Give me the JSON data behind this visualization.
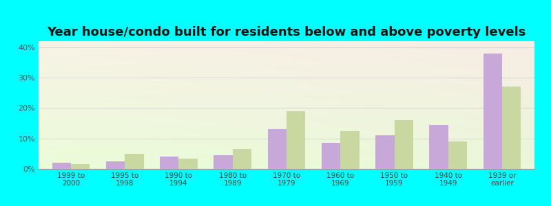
{
  "title": "Year house/condo built for residents below and above poverty levels",
  "categories": [
    "1999 to\n2000",
    "1995 to\n1998",
    "1990 to\n1994",
    "1980 to\n1989",
    "1970 to\n1979",
    "1960 to\n1969",
    "1950 to\n1959",
    "1940 to\n1949",
    "1939 or\nearlier"
  ],
  "below_poverty": [
    2.0,
    2.5,
    4.0,
    4.5,
    13.0,
    8.5,
    11.0,
    14.5,
    38.0
  ],
  "above_poverty": [
    1.5,
    5.0,
    3.5,
    6.5,
    19.0,
    12.5,
    16.0,
    9.0,
    27.0
  ],
  "below_color": "#c8a8d8",
  "above_color": "#c8d8a0",
  "ylim": [
    0,
    42
  ],
  "yticks": [
    0,
    10,
    20,
    30,
    40
  ],
  "ytick_labels": [
    "0%",
    "10%",
    "20%",
    "30%",
    "40%"
  ],
  "background_color": "#00ffff",
  "title_fontsize": 13,
  "bar_width": 0.35
}
